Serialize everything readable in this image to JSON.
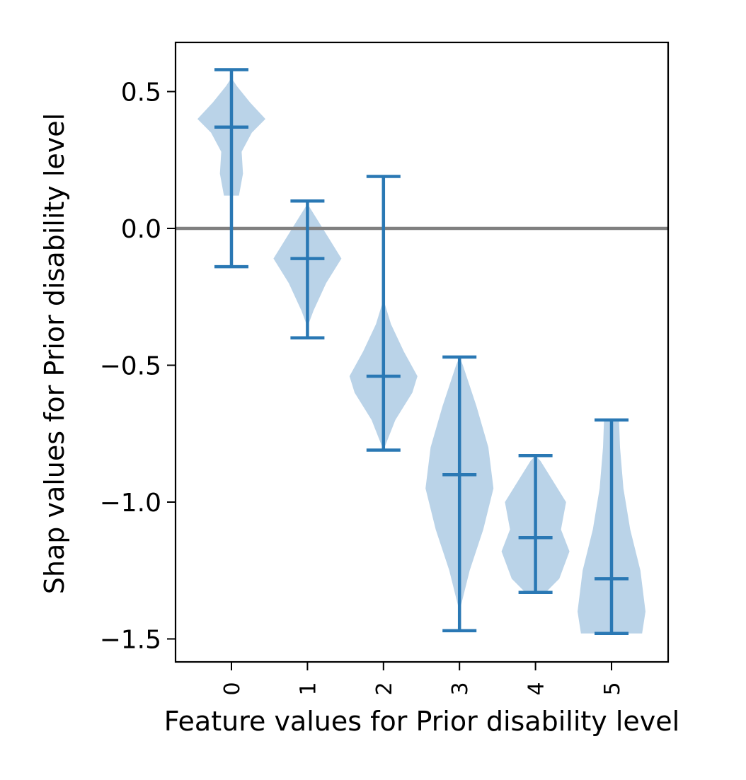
{
  "chart_data": {
    "type": "violin",
    "xlabel": "Feature values for Prior disability level",
    "ylabel": "Shap values for Prior disability level",
    "ylim": [
      -1.57,
      0.68
    ],
    "yticks": [
      0.5,
      0.0,
      -0.5,
      -1.0,
      -1.5
    ],
    "ytick_labels": [
      "0.5",
      "0.0",
      "−0.5",
      "−1.0",
      "−1.5"
    ],
    "categories": [
      "0",
      "1",
      "2",
      "3",
      "4",
      "5"
    ],
    "reference_line": 0.0,
    "grid": false,
    "colors": {
      "violin_fill": "#bad3e8",
      "bars": "#2a78b4",
      "reference_line": "#808080"
    },
    "violins": [
      {
        "category": "0",
        "min": -0.14,
        "max": 0.58,
        "median": 0.37,
        "shape": [
          [
            0.12,
            0.22
          ],
          [
            0.2,
            0.34
          ],
          [
            0.28,
            0.3
          ],
          [
            0.35,
            0.6
          ],
          [
            0.4,
            1.0
          ],
          [
            0.46,
            0.55
          ],
          [
            0.52,
            0.16
          ],
          [
            0.55,
            0.0
          ]
        ]
      },
      {
        "category": "1",
        "min": -0.4,
        "max": 0.1,
        "median": -0.11,
        "shape": [
          [
            -0.36,
            0.0
          ],
          [
            -0.3,
            0.18
          ],
          [
            -0.2,
            0.55
          ],
          [
            -0.11,
            1.0
          ],
          [
            -0.03,
            0.6
          ],
          [
            0.04,
            0.25
          ],
          [
            0.09,
            0.0
          ]
        ]
      },
      {
        "category": "2",
        "min": -0.81,
        "max": 0.19,
        "median": -0.54,
        "shape": [
          [
            -0.81,
            0.0
          ],
          [
            -0.7,
            0.35
          ],
          [
            -0.6,
            0.85
          ],
          [
            -0.54,
            1.0
          ],
          [
            -0.45,
            0.6
          ],
          [
            -0.35,
            0.22
          ],
          [
            -0.26,
            0.0
          ]
        ]
      },
      {
        "category": "3",
        "min": -1.47,
        "max": -0.47,
        "median": -0.9,
        "shape": [
          [
            -1.4,
            0.0
          ],
          [
            -1.25,
            0.3
          ],
          [
            -1.1,
            0.7
          ],
          [
            -0.95,
            1.0
          ],
          [
            -0.8,
            0.85
          ],
          [
            -0.65,
            0.5
          ],
          [
            -0.5,
            0.1
          ],
          [
            -0.47,
            0.0
          ]
        ]
      },
      {
        "category": "4",
        "min": -1.33,
        "max": -0.83,
        "median": -1.13,
        "shape": [
          [
            -1.33,
            0.3
          ],
          [
            -1.28,
            0.7
          ],
          [
            -1.18,
            1.0
          ],
          [
            -1.1,
            0.75
          ],
          [
            -1.0,
            0.9
          ],
          [
            -0.93,
            0.55
          ],
          [
            -0.85,
            0.15
          ],
          [
            -0.83,
            0.0
          ]
        ]
      },
      {
        "category": "5",
        "min": -1.48,
        "max": -0.7,
        "median": -1.28,
        "shape": [
          [
            -1.48,
            0.9
          ],
          [
            -1.4,
            1.0
          ],
          [
            -1.25,
            0.85
          ],
          [
            -1.1,
            0.55
          ],
          [
            -0.95,
            0.35
          ],
          [
            -0.8,
            0.25
          ],
          [
            -0.7,
            0.22
          ]
        ]
      }
    ]
  }
}
